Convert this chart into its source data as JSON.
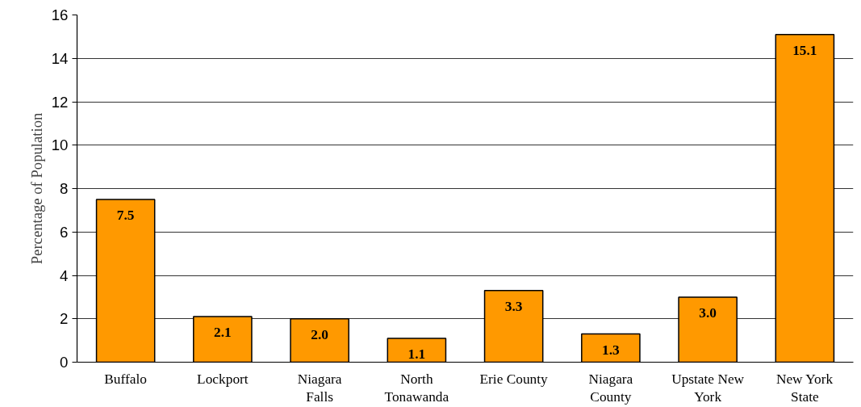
{
  "chart_data": {
    "type": "bar",
    "ylabel": "Percentage of Population",
    "categories": [
      "Buffalo",
      "Lockport",
      "Niagara Falls",
      "North Tonawanda",
      "Erie County",
      "Niagara County",
      "Upstate New York",
      "New York State"
    ],
    "values": [
      7.5,
      2.1,
      2.0,
      1.1,
      3.3,
      1.3,
      3.0,
      15.1
    ],
    "value_labels": [
      "7.5",
      "2.1",
      "2.0",
      "1.1",
      "3.3",
      "1.3",
      "3.0",
      "15.1"
    ],
    "color": "#ff9900",
    "ylim": [
      0,
      16
    ],
    "yticks": [
      0,
      2,
      4,
      6,
      8,
      10,
      12,
      14,
      16
    ],
    "grid": "y"
  }
}
